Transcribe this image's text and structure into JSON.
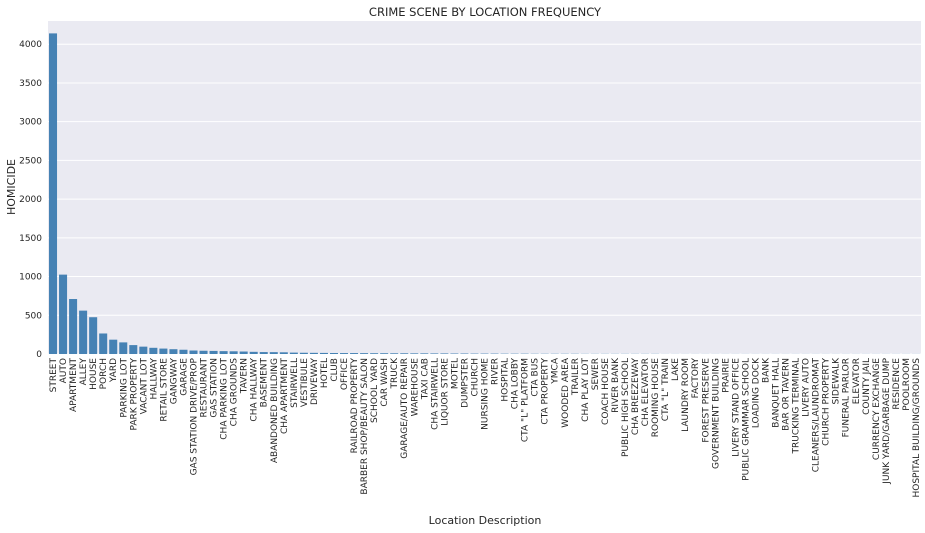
{
  "chart_data": {
    "type": "bar",
    "title": "CRIME SCENE BY LOCATION FREQUENCY",
    "xlabel": "Location Description",
    "ylabel": "HOMICIDE",
    "ylim": [
      0,
      4300
    ],
    "yticks": [
      0,
      500,
      1000,
      1500,
      2000,
      2500,
      3000,
      3500,
      4000
    ],
    "grid": true,
    "bar_color": "#4682b4",
    "background_color": "#eaeaf2",
    "categories": [
      "STREET",
      "AUTO",
      "APARTMENT",
      "ALLEY",
      "HOUSE",
      "PORCH",
      "YARD",
      "PARKING LOT",
      "PARK PROPERTY",
      "VACANT LOT",
      "HALLWAY",
      "RETAIL STORE",
      "GANGWAY",
      "GARAGE",
      "GAS STATION DRIVE/PROP",
      "RESTAURANT",
      "GAS STATION",
      "CHA PARKING LOT",
      "CHA GROUNDS",
      "TAVERN",
      "CHA HALLWAY",
      "BASEMENT",
      "ABANDONED BUILDING",
      "CHA APARTMENT",
      "STAIRWELL",
      "VESTIBULE",
      "DRIVEWAY",
      "HOTEL",
      "CLUB",
      "OFFICE",
      "RAILROAD PROPERTY",
      "BARBER SHOP/BEAUTY SALON",
      "SCHOOL YARD",
      "CAR WASH",
      "TRUCK",
      "GARAGE/AUTO REPAIR",
      "WAREHOUSE",
      "TAXI CAB",
      "CHA STAIRWELL",
      "LIQUOR STORE",
      "MOTEL",
      "DUMPSTER",
      "CHURCH",
      "NURSING HOME",
      "RIVER",
      "HOSPITAL",
      "CHA LOBBY",
      "CTA \"L\" PLATFORM",
      "CTA BUS",
      "CTA PROPERTY",
      "YMCA",
      "WOODED AREA",
      "TRAILER",
      "CHA PLAY LOT",
      "SEWER",
      "COACH HOUSE",
      "RIVER BANK",
      "PUBLIC HIGH SCHOOL",
      "CHA BREEZEWAY",
      "CHA ELEVATOR",
      "ROOMING HOUSE",
      "CTA \"L\" TRAIN",
      "LAKE",
      "LAUNDRY ROOM",
      "FACTORY",
      "FOREST PRESERVE",
      "GOVERNMENT BUILDING",
      "PRAIRIE",
      "LIVERY STAND OFFICE",
      "PUBLIC GRAMMAR SCHOOL",
      "LOADING DOCK",
      "BANK",
      "BANQUET HALL",
      "BAR OR TAVERN",
      "TRUCKING TERMINAL",
      "LIVERY AUTO",
      "CLEANERS/LAUNDROMAT",
      "CHURCH PROPERTY",
      "SIDEWALK",
      "FUNERAL PARLOR",
      "ELEVATOR",
      "COUNTY JAIL",
      "CURRENCY EXCHANGE",
      "JUNK YARD/GARBAGE DUMP",
      "RESIDENCE",
      "POOLROOM",
      "HOSPITAL BUILDING/GROUNDS"
    ],
    "values": [
      4140,
      1025,
      710,
      560,
      475,
      265,
      185,
      150,
      115,
      95,
      80,
      70,
      62,
      55,
      45,
      42,
      40,
      37,
      35,
      32,
      28,
      25,
      24,
      22,
      18,
      16,
      15,
      14,
      13,
      12,
      12,
      11,
      10,
      10,
      9,
      9,
      8,
      8,
      7,
      7,
      6,
      6,
      5,
      5,
      5,
      4,
      4,
      4,
      3,
      3,
      3,
      3,
      3,
      2,
      2,
      2,
      2,
      2,
      2,
      2,
      2,
      1,
      1,
      1,
      1,
      1,
      1,
      1,
      1,
      1,
      1,
      1,
      1,
      1,
      1,
      1,
      1,
      1,
      1,
      1,
      1,
      1,
      1,
      1,
      1,
      1,
      1
    ]
  }
}
